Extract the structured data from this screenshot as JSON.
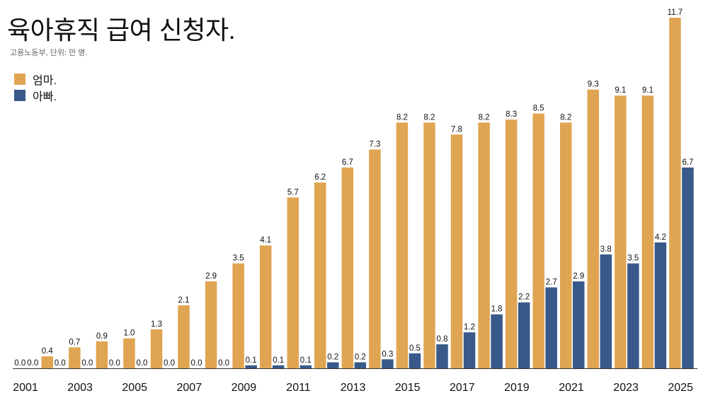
{
  "chart_data": {
    "type": "bar",
    "title": "육아휴직 급여 신청자.",
    "subtitle": "고용노동부, 단위: 만 명.",
    "legend_placement": "top-left",
    "grid": false,
    "ylim": [
      0,
      11.7
    ],
    "categories": [
      "2001",
      "2002",
      "2003",
      "2004",
      "2005",
      "2006",
      "2007",
      "2008",
      "2009",
      "2010",
      "2011",
      "2012",
      "2013",
      "2014",
      "2015",
      "2016",
      "2017",
      "2018",
      "2019",
      "2020",
      "2021",
      "2022",
      "2023",
      "2024",
      "2025"
    ],
    "tick_labels": [
      "2001",
      "2003",
      "2005",
      "2007",
      "2009",
      "2011",
      "2013",
      "2015",
      "2017",
      "2019",
      "2021",
      "2023",
      "2025"
    ],
    "series": [
      {
        "name": "엄마.",
        "color": "#E0A552",
        "values": [
          0.0,
          0.4,
          0.7,
          0.9,
          1.0,
          1.3,
          2.1,
          2.9,
          3.5,
          4.1,
          5.7,
          6.2,
          6.7,
          7.3,
          8.2,
          8.2,
          7.8,
          8.2,
          8.3,
          8.5,
          8.2,
          9.3,
          9.1,
          9.1,
          11.7
        ]
      },
      {
        "name": "아빠.",
        "color": "#385989",
        "values": [
          0.0,
          0.0,
          0.0,
          0.0,
          0.0,
          0.0,
          0.0,
          0.0,
          0.1,
          0.1,
          0.1,
          0.2,
          0.2,
          0.3,
          0.5,
          0.8,
          1.2,
          1.8,
          2.2,
          2.7,
          2.9,
          3.8,
          3.5,
          4.2,
          6.7
        ]
      }
    ]
  }
}
